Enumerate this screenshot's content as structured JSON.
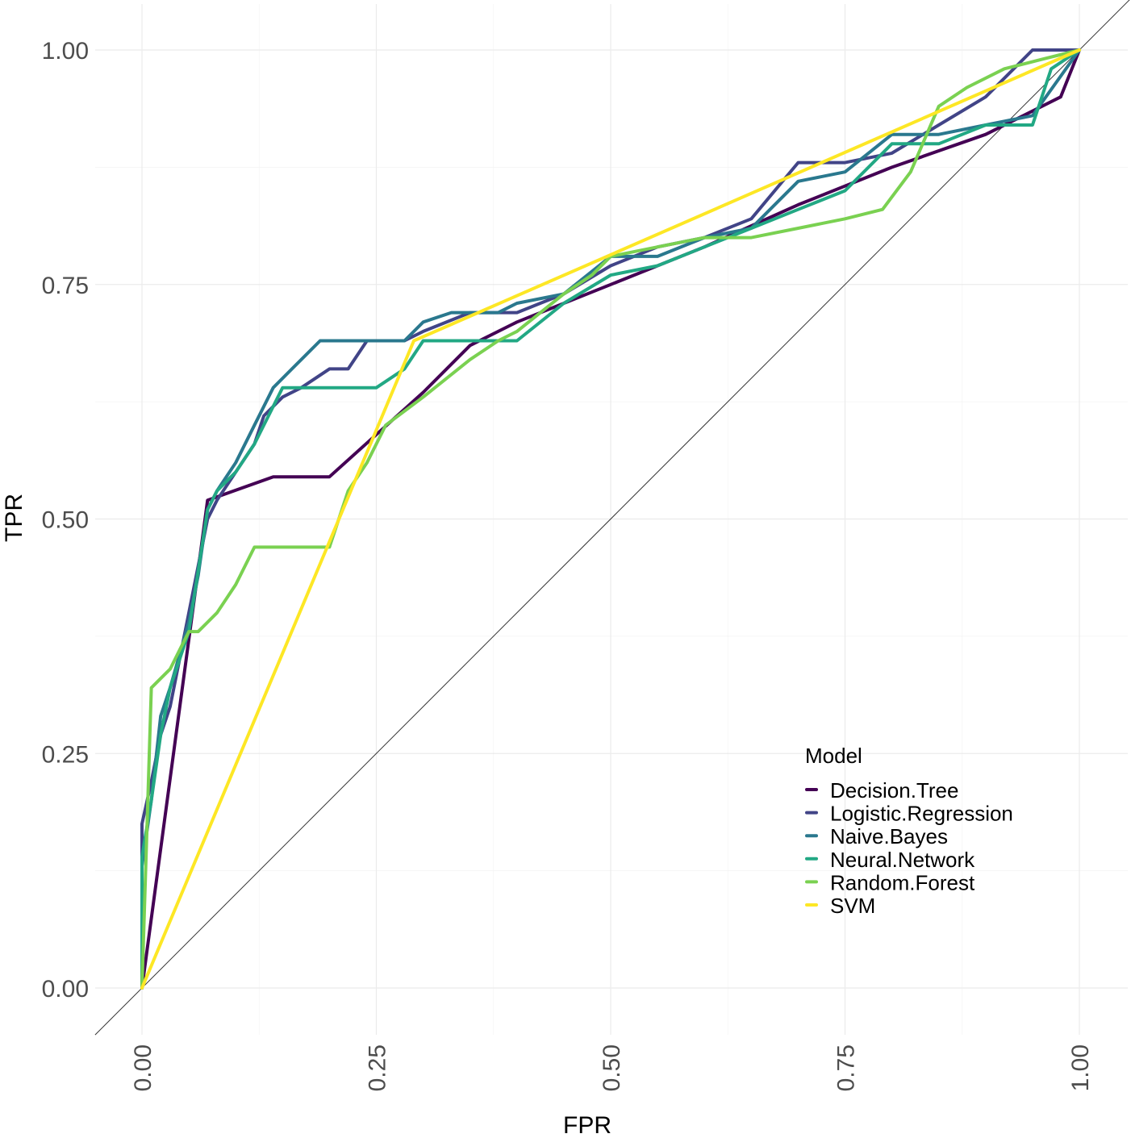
{
  "chart_data": {
    "type": "line",
    "title": "",
    "xlabel": "FPR",
    "ylabel": "TPR",
    "xlim": [
      0,
      1
    ],
    "ylim": [
      0,
      1
    ],
    "x_ticks": [
      0,
      0.25,
      0.5,
      0.75,
      1
    ],
    "y_ticks": [
      0,
      0.25,
      0.5,
      0.75,
      1
    ],
    "x_tick_labels": [
      "0.00",
      "0.25",
      "0.50",
      "0.75",
      "1.00"
    ],
    "y_tick_labels": [
      "0.00",
      "0.25",
      "0.50",
      "0.75",
      "1.00"
    ],
    "grid": true,
    "reference_line": {
      "x": [
        0,
        1
      ],
      "y": [
        0,
        1
      ],
      "color": "#333333"
    },
    "legend": {
      "title": "Model",
      "position": "bottom-right"
    },
    "series": [
      {
        "name": "Decision.Tree",
        "color": "#440154",
        "x": [
          0,
          0.07,
          0.14,
          0.2,
          0.3,
          0.35,
          0.4,
          0.5,
          0.6,
          0.7,
          0.8,
          0.9,
          0.98,
          1
        ],
        "y": [
          0,
          0.52,
          0.545,
          0.545,
          0.635,
          0.685,
          0.71,
          0.75,
          0.79,
          0.835,
          0.875,
          0.91,
          0.95,
          1
        ]
      },
      {
        "name": "Logistic.Regression",
        "color": "#414487",
        "x": [
          0,
          0,
          0.01,
          0.02,
          0.03,
          0.05,
          0.07,
          0.08,
          0.1,
          0.12,
          0.13,
          0.15,
          0.17,
          0.2,
          0.22,
          0.24,
          0.28,
          0.3,
          0.35,
          0.4,
          0.45,
          0.5,
          0.55,
          0.6,
          0.65,
          0.7,
          0.75,
          0.8,
          0.85,
          0.9,
          0.95,
          1
        ],
        "y": [
          0,
          0.175,
          0.22,
          0.27,
          0.3,
          0.4,
          0.5,
          0.52,
          0.55,
          0.58,
          0.61,
          0.63,
          0.64,
          0.66,
          0.66,
          0.69,
          0.69,
          0.7,
          0.72,
          0.72,
          0.74,
          0.77,
          0.79,
          0.8,
          0.82,
          0.88,
          0.88,
          0.89,
          0.92,
          0.95,
          1,
          1
        ]
      },
      {
        "name": "Naive.Bayes",
        "color": "#2a788e",
        "x": [
          0,
          0,
          0.01,
          0.02,
          0.03,
          0.05,
          0.06,
          0.07,
          0.08,
          0.1,
          0.12,
          0.14,
          0.16,
          0.19,
          0.2,
          0.28,
          0.3,
          0.33,
          0.38,
          0.4,
          0.45,
          0.5,
          0.55,
          0.6,
          0.65,
          0.7,
          0.75,
          0.8,
          0.85,
          0.9,
          0.95,
          1
        ],
        "y": [
          0,
          0.13,
          0.2,
          0.29,
          0.32,
          0.39,
          0.44,
          0.51,
          0.53,
          0.56,
          0.6,
          0.64,
          0.66,
          0.69,
          0.69,
          0.69,
          0.71,
          0.72,
          0.72,
          0.73,
          0.74,
          0.78,
          0.78,
          0.8,
          0.81,
          0.86,
          0.87,
          0.91,
          0.91,
          0.92,
          0.93,
          1
        ]
      },
      {
        "name": "Neural.Network",
        "color": "#22a884",
        "x": [
          0,
          0,
          0.01,
          0.02,
          0.03,
          0.05,
          0.07,
          0.08,
          0.1,
          0.12,
          0.15,
          0.2,
          0.25,
          0.28,
          0.3,
          0.35,
          0.4,
          0.45,
          0.5,
          0.55,
          0.6,
          0.65,
          0.7,
          0.75,
          0.8,
          0.85,
          0.9,
          0.95,
          0.97,
          1
        ],
        "y": [
          0,
          0.14,
          0.2,
          0.27,
          0.32,
          0.38,
          0.51,
          0.53,
          0.55,
          0.58,
          0.64,
          0.64,
          0.64,
          0.66,
          0.69,
          0.69,
          0.69,
          0.73,
          0.76,
          0.77,
          0.79,
          0.81,
          0.83,
          0.85,
          0.9,
          0.9,
          0.92,
          0.92,
          0.98,
          1
        ]
      },
      {
        "name": "Random.Forest",
        "color": "#7ad151",
        "x": [
          0,
          0.01,
          0.02,
          0.03,
          0.04,
          0.05,
          0.06,
          0.08,
          0.1,
          0.12,
          0.15,
          0.18,
          0.2,
          0.22,
          0.24,
          0.25,
          0.26,
          0.3,
          0.35,
          0.38,
          0.4,
          0.45,
          0.48,
          0.5,
          0.55,
          0.6,
          0.65,
          0.7,
          0.75,
          0.79,
          0.82,
          0.85,
          0.88,
          0.92,
          0.96,
          1
        ],
        "y": [
          0,
          0.32,
          0.33,
          0.34,
          0.36,
          0.38,
          0.38,
          0.4,
          0.43,
          0.47,
          0.47,
          0.47,
          0.47,
          0.53,
          0.56,
          0.58,
          0.6,
          0.63,
          0.67,
          0.69,
          0.7,
          0.74,
          0.76,
          0.78,
          0.79,
          0.8,
          0.8,
          0.81,
          0.82,
          0.83,
          0.87,
          0.94,
          0.96,
          0.98,
          0.99,
          1
        ]
      },
      {
        "name": "SVM",
        "color": "#fde725",
        "x": [
          0,
          0.29,
          1
        ],
        "y": [
          0,
          0.69,
          1
        ]
      }
    ]
  }
}
